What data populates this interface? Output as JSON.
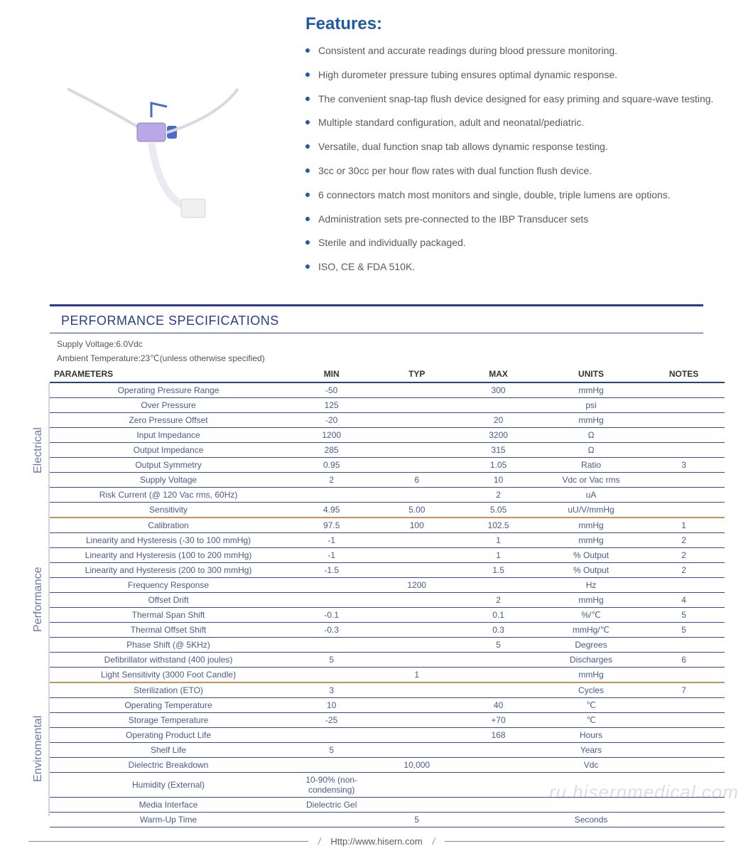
{
  "colors": {
    "brand_blue": "#1f5aa8",
    "rule_blue": "#2a3e8f",
    "row_blue": "#3a4a9a",
    "section_divider": "#c8925a",
    "side_label": "#6a7aa8",
    "text": "#4a4a4a",
    "cell_text": "#4a5a8a"
  },
  "features": {
    "title": "Features:",
    "items": [
      "Consistent and accurate readings during blood pressure monitoring.",
      "High durometer pressure tubing ensures optimal dynamic response.",
      "The convenient snap-tap flush device designed for easy priming and square-wave testing.",
      "Multiple standard configuration, adult and neonatal/pediatric.",
      "Versatile, dual function snap tab allows dynamic response testing.",
      "3cc or 30cc per hour flow rates with dual function flush device.",
      "6 connectors match most monitors and single, double, triple lumens are options.",
      "Administration sets pre-connected to the IBP Transducer sets",
      "Sterile and individually packaged.",
      "ISO, CE & FDA 510K."
    ]
  },
  "spec": {
    "section_title": "PERFORMANCE SPECIFICATIONS",
    "conditions": [
      "Supply Voltage:6.0Vdc",
      "Ambient Temperature:23℃(unless otherwise specified)"
    ],
    "columns": [
      "PARAMETERS",
      "MIN",
      "TYP",
      "MAX",
      "UNITS",
      "NOTES"
    ],
    "col_widths": [
      "320px",
      "120px",
      "110px",
      "110px",
      "140px",
      "110px"
    ],
    "groups": [
      {
        "label": "Electrical",
        "rows": [
          {
            "p": "Operating Pressure Range",
            "min": "-50",
            "typ": "",
            "max": "300",
            "u": "mmHg",
            "n": ""
          },
          {
            "p": "Over  Pressure",
            "min": "125",
            "typ": "",
            "max": "",
            "u": "psi",
            "n": ""
          },
          {
            "p": "Zero Pressure Offset",
            "min": "-20",
            "typ": "",
            "max": "20",
            "u": "mmHg",
            "n": ""
          },
          {
            "p": "Input Impedance",
            "min": "1200",
            "typ": "",
            "max": "3200",
            "u": "Ω",
            "n": ""
          },
          {
            "p": "Output Impedance",
            "min": "285",
            "typ": "",
            "max": "315",
            "u": "Ω",
            "n": ""
          },
          {
            "p": "Output Symmetry",
            "min": "0.95",
            "typ": "",
            "max": "1.05",
            "u": "Ratio",
            "n": "3"
          },
          {
            "p": "Supply Voltage",
            "min": "2",
            "typ": "6",
            "max": "10",
            "u": "Vdc or Vac rms",
            "n": ""
          },
          {
            "p": "Risk Current (@ 120 Vac rms, 60Hz)",
            "min": "",
            "typ": "",
            "max": "2",
            "u": "uA",
            "n": ""
          },
          {
            "p": "Sensitivity",
            "min": "4.95",
            "typ": "5.00",
            "max": "5.05",
            "u": "uU/V/mmHg",
            "n": ""
          }
        ]
      },
      {
        "label": "Performance",
        "rows": [
          {
            "p": "Calibration",
            "min": "97.5",
            "typ": "100",
            "max": "102.5",
            "u": "mmHg",
            "n": "1"
          },
          {
            "p": "Linearity and Hysteresis (-30 to 100 mmHg)",
            "min": "-1",
            "typ": "",
            "max": "1",
            "u": "mmHg",
            "n": "2"
          },
          {
            "p": "Linearity and Hysteresis (100 to 200 mmHg)",
            "min": "-1",
            "typ": "",
            "max": "1",
            "u": "% Output",
            "n": "2"
          },
          {
            "p": "Linearity and Hysteresis (200 to 300 mmHg)",
            "min": "-1.5",
            "typ": "",
            "max": "1.5",
            "u": "% Output",
            "n": "2"
          },
          {
            "p": "Frequency Response",
            "min": "",
            "typ": "1200",
            "max": "",
            "u": "Hz",
            "n": ""
          },
          {
            "p": "Offset Drift",
            "min": "",
            "typ": "",
            "max": "2",
            "u": "mmHg",
            "n": "4"
          },
          {
            "p": "Thermal Span Shift",
            "min": "-0.1",
            "typ": "",
            "max": "0.1",
            "u": "%/℃",
            "n": "5"
          },
          {
            "p": "Thermal Offset Shift",
            "min": "-0.3",
            "typ": "",
            "max": "0.3",
            "u": "mmHg/℃",
            "n": "5"
          },
          {
            "p": "Phase Shift (@ 5KHz)",
            "min": "",
            "typ": "",
            "max": "5",
            "u": "Degrees",
            "n": ""
          },
          {
            "p": "Defibrillator withstand (400 joules)",
            "min": "5",
            "typ": "",
            "max": "",
            "u": "Discharges",
            "n": "6"
          },
          {
            "p": "Light Sensitivity (3000 Foot Candle)",
            "min": "",
            "typ": "1",
            "max": "",
            "u": "mmHg",
            "n": ""
          }
        ]
      },
      {
        "label": "Enviromental",
        "rows": [
          {
            "p": "Sterilization (ETO)",
            "min": "3",
            "typ": "",
            "max": "",
            "u": "Cycles",
            "n": "7"
          },
          {
            "p": "Operating Temperature",
            "min": "10",
            "typ": "",
            "max": "40",
            "u": "℃",
            "n": ""
          },
          {
            "p": "Storage Temperature",
            "min": "-25",
            "typ": "",
            "max": "+70",
            "u": "℃",
            "n": ""
          },
          {
            "p": "Operating Product Life",
            "min": "",
            "typ": "",
            "max": "168",
            "u": "Hours",
            "n": ""
          },
          {
            "p": "Shelf Life",
            "min": "5",
            "typ": "",
            "max": "",
            "u": "Years",
            "n": ""
          },
          {
            "p": "Dielectric Breakdown",
            "min": "",
            "typ": "10,000",
            "max": "",
            "u": "Vdc",
            "n": ""
          },
          {
            "p": "Humidity (External)",
            "min": "10-90% (non-condensing)",
            "typ": "",
            "max": "",
            "u": "",
            "n": ""
          },
          {
            "p": "Media Interface",
            "min": "Dielectric Gel",
            "typ": "",
            "max": "",
            "u": "",
            "n": ""
          },
          {
            "p": "Warm-Up Time",
            "min": "",
            "typ": "5",
            "max": "",
            "u": "Seconds",
            "n": ""
          }
        ]
      }
    ]
  },
  "footer": {
    "url": "Http://www.hisern.com"
  },
  "watermark": "ru.hisernmedical.com"
}
